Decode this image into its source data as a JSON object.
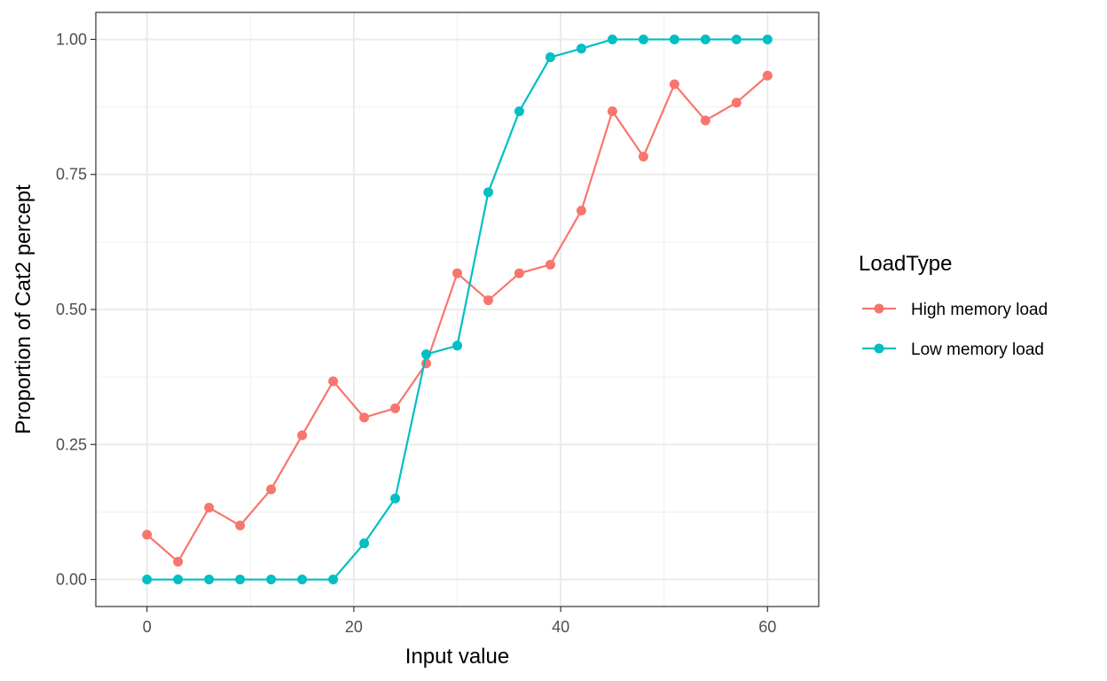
{
  "chart_data": {
    "type": "line",
    "title": "",
    "xlabel": "Input value",
    "ylabel": "Proportion of Cat2 percept",
    "xlim": [
      -4.95,
      64.95
    ],
    "ylim": [
      -0.05,
      1.05
    ],
    "xticks": [
      0,
      20,
      40,
      60
    ],
    "xtick_labels": [
      "0",
      "20",
      "40",
      "60"
    ],
    "yticks": [
      0,
      0.25,
      0.5,
      0.75,
      1
    ],
    "ytick_labels": [
      "0.00",
      "0.25",
      "0.50",
      "0.75",
      "1.00"
    ],
    "grid": true,
    "markers": true,
    "legend": {
      "title": "LoadType",
      "position": "right"
    },
    "x": [
      0,
      3,
      6,
      9,
      12,
      15,
      18,
      21,
      24,
      27,
      30,
      33,
      36,
      39,
      42,
      45,
      48,
      51,
      54,
      57,
      60
    ],
    "series": [
      {
        "name": "High memory load",
        "color": "#F8766D",
        "values": [
          0.083,
          0.033,
          0.133,
          0.1,
          0.167,
          0.267,
          0.367,
          0.3,
          0.317,
          0.4,
          0.567,
          0.517,
          0.567,
          0.583,
          0.683,
          0.867,
          0.783,
          0.917,
          0.85,
          0.883,
          0.933
        ]
      },
      {
        "name": "Low memory load",
        "color": "#00BFC4",
        "values": [
          0,
          0,
          0,
          0,
          0,
          0,
          0,
          0.067,
          0.15,
          0.417,
          0.433,
          0.717,
          0.867,
          0.967,
          0.983,
          1,
          1,
          1,
          1,
          1,
          1
        ]
      }
    ]
  }
}
